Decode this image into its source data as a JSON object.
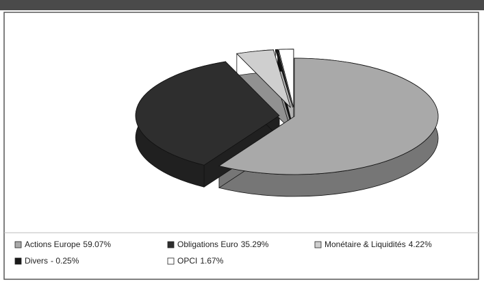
{
  "chart_data": {
    "type": "pie",
    "categories": [
      "Actions Europe",
      "Obligations Euro",
      "Monétaire & Liquidités",
      "Divers",
      "OPCI"
    ],
    "values": [
      59.07,
      35.29,
      4.22,
      -0.25,
      1.67
    ],
    "value_labels": [
      "59.07%",
      "35.29%",
      "4.22%",
      "- 0.25%",
      "1.67%"
    ],
    "colors": [
      "#a9a9a9",
      "#2e2e2e",
      "#cfcfcf",
      "#1a1a1a",
      "#ffffff"
    ]
  }
}
